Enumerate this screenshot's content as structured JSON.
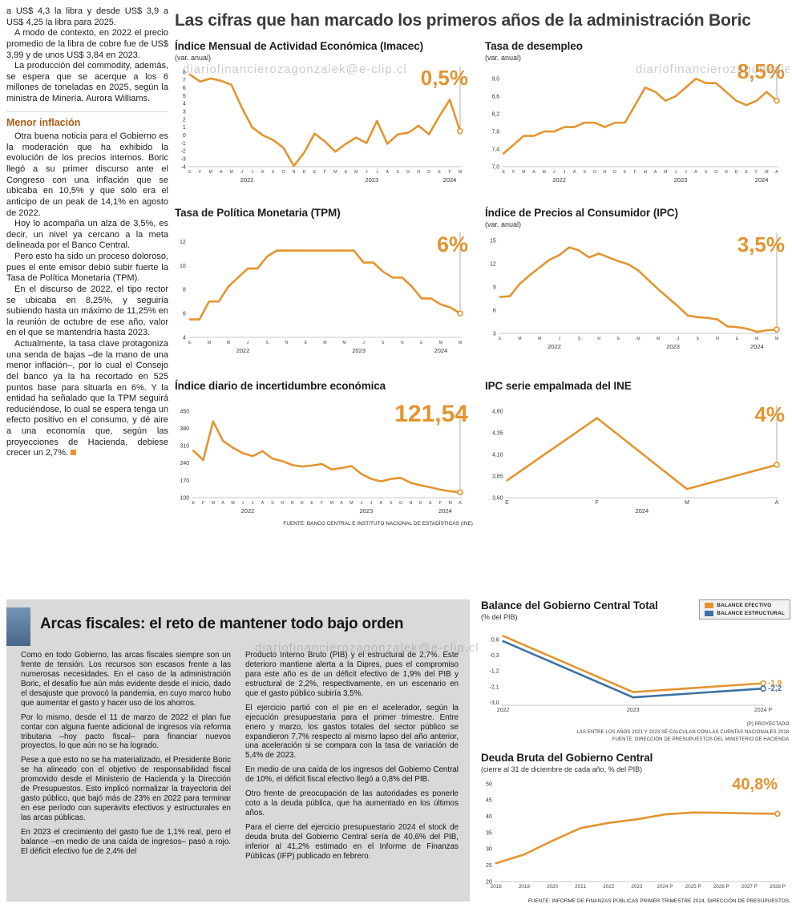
{
  "page": {
    "watermark": "diariofinancierozagonzalek@e-clip.cl"
  },
  "headline": "Las cifras que han marcado los primeros años de la administración Boric",
  "left_article": {
    "paragraphs": [
      "a US$ 4,3 la libra y desde US$ 3,9 a US$ 4,25 la libra para 2025.",
      "A modo de contexto, en 2022 el precio promedio de la libra de cobre fue de US$ 3,99 y de unos US$ 3,84 en 2023.",
      "La producción del commodity, además, se espera que se acerque a los 6 millones de toneladas en 2025, según la ministra de Minería, Aurora Williams."
    ],
    "subhead": "Menor inflación",
    "paragraphs2": [
      "Otra buena noticia para el Gobierno es la moderación que ha exhibido la evolución de los precios internos. Boric llegó a su primer discurso ante el Congreso con una inflación que se ubicaba en 10,5% y que sólo era el anticipo de un peak de 14,1% en agosto de 2022.",
      "Hoy lo acompaña un alza de 3,5%, es decir, un nivel ya cercano a la meta delineada por el Banco Central.",
      "Pero esto ha sido un proceso doloroso, pues el ente emisor debió subir fuerte la Tasa de Política Monetaria (TPM).",
      "En el discurso de 2022, el tipo rector se ubicaba en 8,25%, y seguiría subiendo hasta un máximo de 11,25% en la reunión de octubre de ese año, valor en el que se mantendría hasta 2023.",
      "Actualmente, la tasa clave protagoniza una senda de bajas –de la mano de una menor inflación–, por lo cual el Consejo del banco ya la ha recortado en 525 puntos base para situarla en 6%. Y la entidad ha señalado que la TPM seguirá reduciéndose, lo cual se espera tenga un efecto positivo en el consumo, y dé aire a una economía que, según las proyecciones de Hacienda, debiese crecer un 2,7%."
    ]
  },
  "fiscal": {
    "headline": "Arcas fiscales: el reto de mantener todo bajo orden",
    "col1": [
      "Como en todo Gobierno, las arcas fiscales siempre son un frente de tensión. Los recursos son escasos frente a las numerosas necesidades. En el caso de la administración Boric, el desafío fue aún más evidente desde el inicio, dado el desajuste que provocó la pandemia, en cuyo marco hubo que aumentar el gasto y hacer uso de los ahorros.",
      "Por lo mismo, desde el 11 de marzo de 2022 el plan fue contar con alguna fuente adicional de ingresos vía reforma tributaria –hoy pacto fiscal– para financiar nuevos proyectos, lo que aún no se ha logrado.",
      "Pese a que esto no se ha materializado, el Presidente Boric se ha alineado con el objetivo de responsabilidad fiscal promovido desde el Ministerio de Hacienda y la Dirección de Presupuestos. Esto implicó normalizar la trayectoria del gasto público, que bajó más de 23% en 2022 para terminar en ese período con superávits efectivos y estructurales en las arcas públicas.",
      "En 2023 el crecimiento del gasto fue de 1,1% real, pero el balance –en medio de una caída de ingresos– pasó a rojo. El déficit efectivo fue de 2,4% del"
    ],
    "col2": [
      "Producto Interno Bruto (PIB) y el estructural de 2,7%. Este deterioro mantiene alerta a la Dipres, pues el compromiso para este año es de un déficit efectivo de 1,9% del PIB y estructural de 2,2%, respectivamente, en un escenario en que el gasto público subiría 3,5%.",
      "El ejercicio partió con el pie en el acelerador, según la ejecución presupuestaria para el primer trimestre. Entre enero y marzo, los gastos totales del sector público se expandieron 7,7% respecto al mismo lapso del año anterior, una aceleración si se compara con la tasa de variación de 5,4% de 2023.",
      "En medio de una caída de los ingresos del Gobierno Central de 10%, el déficit fiscal efectivo llegó a 0,8% del PIB.",
      "Otro frente de preocupación de las autoridades es ponerle coto a la deuda pública, que ha aumentado en los últimos años.",
      "Para el cierre del ejercicio presupuestario 2024 el stock de deuda bruta del Gobierno Central sería de 40,6% del PIB, inferior al 41,2% estimado en el Informe de Finanzas Públicas (IFP) publicado en febrero."
    ]
  },
  "chart_data": [
    {
      "type": "line",
      "title": "Índice Mensual de Actividad Económica (Imacec)",
      "subtitle": "(var. anual)",
      "big_label": "0,5%",
      "y_tick_labels": [
        "8",
        "7",
        "6",
        "5",
        "4",
        "3",
        "2",
        "1",
        "0",
        "-1",
        "-2",
        "-3",
        "-4"
      ],
      "y_tick_values": [
        8,
        7,
        6,
        5,
        4,
        3,
        2,
        1,
        0,
        -1,
        -2,
        -3,
        -4
      ],
      "y_min": -4,
      "y_max": 8,
      "x_labels": [
        "E",
        "F",
        "M",
        "A",
        "M",
        "J",
        "J",
        "A",
        "S",
        "O",
        "N",
        "D",
        "E",
        "F",
        "M",
        "A",
        "M",
        "J",
        "J",
        "A",
        "S",
        "O",
        "N",
        "D",
        "E",
        "F",
        "M"
      ],
      "years": [
        {
          "label": "2022",
          "from": 0,
          "to": 11
        },
        {
          "label": "2023",
          "from": 12,
          "to": 23
        },
        {
          "label": "2024",
          "from": 24,
          "to": 26
        }
      ],
      "drop_line": true,
      "series": [
        {
          "name": "Imacec",
          "color": "#e2952f",
          "values": [
            7.7,
            6.8,
            7.2,
            6.9,
            6.4,
            3.5,
            1.0,
            0.0,
            -0.6,
            -1.6,
            -3.9,
            -2.2,
            0.2,
            -0.8,
            -2.1,
            -1.1,
            -0.3,
            -1.0,
            1.8,
            -1.1,
            0.1,
            0.3,
            1.2,
            0.1,
            2.4,
            4.5,
            0.5
          ]
        }
      ]
    },
    {
      "type": "line",
      "title": "Tasa de desempleo",
      "subtitle": "(var. anual)",
      "big_label": "8,5%",
      "y_tick_labels": [
        "9,0",
        "8,6",
        "8,2",
        "7,8",
        "7,4",
        "7,0"
      ],
      "y_tick_values": [
        9.0,
        8.6,
        8.2,
        7.8,
        7.4,
        7.0
      ],
      "y_min": 7.0,
      "y_max": 9.15,
      "x_labels": [
        "E",
        "F",
        "M",
        "A",
        "M",
        "J",
        "J",
        "A",
        "S",
        "O",
        "N",
        "D",
        "E",
        "F",
        "M",
        "A",
        "M",
        "J",
        "J",
        "A",
        "S",
        "O",
        "N",
        "D",
        "E",
        "F",
        "M",
        "A"
      ],
      "years": [
        {
          "label": "2022",
          "from": 0,
          "to": 11
        },
        {
          "label": "2023",
          "from": 12,
          "to": 23
        },
        {
          "label": "2024",
          "from": 24,
          "to": 27
        }
      ],
      "drop_line": true,
      "series": [
        {
          "name": "Tasa de desempleo",
          "color": "#e2952f",
          "values": [
            7.3,
            7.5,
            7.7,
            7.7,
            7.8,
            7.8,
            7.9,
            7.9,
            8.0,
            8.0,
            7.9,
            8.0,
            8.0,
            8.4,
            8.8,
            8.7,
            8.5,
            8.6,
            8.8,
            9.0,
            8.9,
            8.9,
            8.7,
            8.5,
            8.4,
            8.5,
            8.7,
            8.5
          ]
        }
      ]
    },
    {
      "type": "line",
      "title": "Tasa de Política Monetaria (TPM)",
      "subtitle": "",
      "big_label": "6%",
      "y_tick_labels": [
        "12",
        "10",
        "8",
        "6",
        "4"
      ],
      "y_tick_values": [
        12,
        10,
        8,
        6,
        4
      ],
      "y_min": 4,
      "y_max": 12.3,
      "x_labels": [
        "E",
        "",
        "M",
        "",
        "M",
        "",
        "J",
        "",
        "S",
        "",
        "N",
        "",
        "E",
        "",
        "M",
        "",
        "M",
        "",
        "J",
        "",
        "S",
        "",
        "N",
        "",
        "E",
        "",
        "M",
        "",
        "M"
      ],
      "years": [
        {
          "label": "2022",
          "from": 0,
          "to": 11
        },
        {
          "label": "2023",
          "from": 12,
          "to": 23
        },
        {
          "label": "2024",
          "from": 24,
          "to": 28
        }
      ],
      "drop_line": true,
      "series": [
        {
          "name": "TPM",
          "color": "#e2952f",
          "values": [
            5.5,
            5.5,
            7.0,
            7.0,
            8.25,
            9.0,
            9.75,
            9.75,
            10.75,
            11.25,
            11.25,
            11.25,
            11.25,
            11.25,
            11.25,
            11.25,
            11.25,
            11.25,
            10.25,
            10.25,
            9.5,
            9.0,
            9.0,
            8.25,
            7.25,
            7.25,
            6.75,
            6.5,
            6.0
          ]
        }
      ]
    },
    {
      "type": "line",
      "title": "Índice de Precios al Consumidor (IPC)",
      "subtitle": "(var. anual)",
      "big_label": "3,5%",
      "y_tick_labels": [
        "15",
        "12",
        "9",
        "6",
        "3"
      ],
      "y_tick_values": [
        15,
        12,
        9,
        6,
        3
      ],
      "y_min": 3,
      "y_max": 15.2,
      "x_labels": [
        "E",
        "",
        "M",
        "",
        "M",
        "",
        "J",
        "",
        "S",
        "",
        "N",
        "",
        "E",
        "",
        "M",
        "",
        "M",
        "",
        "J",
        "",
        "S",
        "",
        "N",
        "",
        "E",
        "",
        "M",
        "",
        "M"
      ],
      "years": [
        {
          "label": "2022",
          "from": 0,
          "to": 11
        },
        {
          "label": "2023",
          "from": 12,
          "to": 23
        },
        {
          "label": "2024",
          "from": 24,
          "to": 28
        }
      ],
      "drop_line": true,
      "series": [
        {
          "name": "IPC",
          "color": "#e2952f",
          "values": [
            7.7,
            7.8,
            9.4,
            10.5,
            11.5,
            12.5,
            13.1,
            14.1,
            13.7,
            12.8,
            13.3,
            12.8,
            12.3,
            11.9,
            11.1,
            9.9,
            8.7,
            7.6,
            6.5,
            5.3,
            5.1,
            5.0,
            4.8,
            3.9,
            3.8,
            3.6,
            3.2,
            3.4,
            3.5
          ]
        }
      ]
    },
    {
      "type": "line",
      "title": "Índice diario de incertidumbre económica",
      "subtitle": "",
      "big_label": "121,54",
      "y_tick_labels": [
        "450",
        "380",
        "310",
        "240",
        "170",
        "100"
      ],
      "y_tick_values": [
        450,
        380,
        310,
        240,
        170,
        100
      ],
      "y_min": 100,
      "y_max": 450,
      "x_labels": [
        "E",
        "F",
        "M",
        "A",
        "M",
        "J",
        "J",
        "A",
        "S",
        "O",
        "N",
        "D",
        "E",
        "F",
        "M",
        "A",
        "M",
        "J",
        "J",
        "A",
        "S",
        "O",
        "N",
        "D",
        "E",
        "F",
        "M",
        "A"
      ],
      "years": [
        {
          "label": "2022",
          "from": 0,
          "to": 11
        },
        {
          "label": "2023",
          "from": 12,
          "to": 23
        },
        {
          "label": "2024",
          "from": 24,
          "to": 27
        }
      ],
      "drop_line": true,
      "source": "FUENTE: BANCO CENTRAL E INSTITUTO NACIONAL DE ESTADÍSTICAS (INE)",
      "series": [
        {
          "name": "Incertidumbre económica",
          "color": "#e2952f",
          "values": [
            290,
            252,
            408,
            330,
            302,
            280,
            268,
            288,
            258,
            248,
            232,
            226,
            230,
            236,
            214,
            220,
            228,
            196,
            176,
            166,
            176,
            180,
            160,
            150,
            142,
            132,
            126,
            121.54
          ]
        }
      ]
    },
    {
      "type": "line",
      "title": "IPC serie empalmada del INE",
      "subtitle": "",
      "big_label": "4%",
      "y_tick_labels": [
        "4,60",
        "4,35",
        "4,10",
        "3,85",
        "3,60"
      ],
      "y_tick_values": [
        4.6,
        4.35,
        4.1,
        3.85,
        3.6
      ],
      "y_min": 3.6,
      "y_max": 4.6,
      "x_labels": [
        "E",
        "F",
        "M",
        "A"
      ],
      "years": [
        {
          "label": "2024",
          "from": 0,
          "to": 3
        }
      ],
      "drop_line": true,
      "series": [
        {
          "name": "IPC serie empalmada",
          "color": "#e2952f",
          "values": [
            3.8,
            4.52,
            3.7,
            3.98
          ]
        }
      ]
    },
    {
      "type": "line",
      "title": "Balance del Gobierno Central Total",
      "subtitle": "(% del PIB)",
      "y_tick_labels": [
        "0,6",
        "-0,3",
        "-1,2",
        "-2,1",
        "-3,0"
      ],
      "y_tick_values": [
        0.6,
        -0.3,
        -1.2,
        -2.1,
        -3.0
      ],
      "y_min": -3.15,
      "y_max": 1.05,
      "x_labels": [
        "2022",
        "2023",
        "2024 P"
      ],
      "drop_line": false,
      "notes": [
        "(P) PROYECTADO.",
        "LAS ENTRE LOS AÑOS 2021 Y 2023 SE CALCULAN CON LAS CUENTAS NACIONALES 2018.",
        "FUENTE: DIRECCIÓN DE PRESUPUESTOS DEL MINISTERIO DE HACIENDA."
      ],
      "series": [
        {
          "name": "BALANCE EFECTIVO",
          "color": "#e2952f",
          "values": [
            0.8,
            -2.4,
            -1.9
          ],
          "end_label": "-1,9"
        },
        {
          "name": "BALANCE ESTRUCTURAL",
          "color": "#3e71a4",
          "values": [
            0.5,
            -2.7,
            -2.2
          ],
          "end_label": "-2,2"
        }
      ]
    },
    {
      "type": "line",
      "title": "Deuda Bruta del Gobierno Central",
      "subtitle": "(cierre al 31 de diciembre de cada año, % del PIB)",
      "big_label": "40,8%",
      "y_tick_labels": [
        "50",
        "45",
        "40",
        "35",
        "30",
        "25",
        "20"
      ],
      "y_tick_values": [
        50,
        45,
        40,
        35,
        30,
        25,
        20
      ],
      "y_min": 20,
      "y_max": 50,
      "x_labels": [
        "2018",
        "2019",
        "2020",
        "2021",
        "2022",
        "2023",
        "2024 P",
        "2025 P",
        "2026 P",
        "2027 P",
        "2028 P"
      ],
      "drop_line": false,
      "source": "FUENTE: INFORME DE FINANZAS PÚBLICAS PRIMER TRIMESTRE 2024, DIRECCIÓN DE PRESUPUESTOS.",
      "series": [
        {
          "name": "Deuda bruta",
          "color": "#e2952f",
          "values": [
            25.6,
            28.3,
            32.5,
            36.4,
            38.0,
            39.1,
            40.6,
            41.2,
            41.1,
            40.9,
            40.8
          ]
        }
      ]
    }
  ]
}
